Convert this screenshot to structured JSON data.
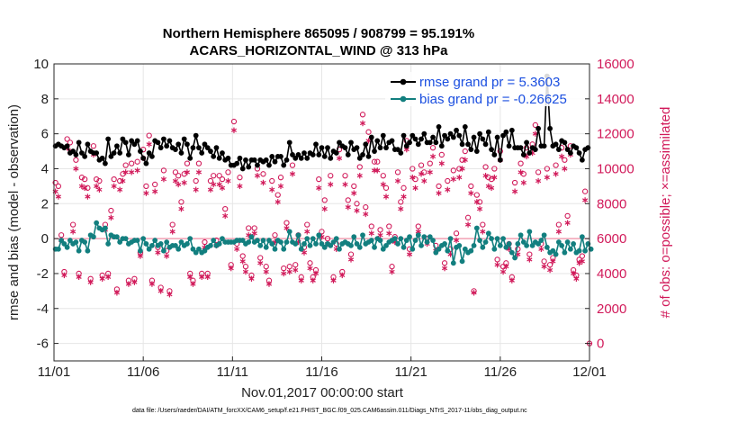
{
  "chart_data": {
    "type": "line",
    "title_line1": "Northern Hemisphere 865095 / 908799 = 95.191%",
    "title_line2": "ACARS_HORIZONTAL_WIND @ 313 hPa",
    "xlabel": "Nov.01,2017 00:00:00 start",
    "ylabel_left": "rmse and bias (model - observation)",
    "ylabel_right": "# of obs: o=possible; ×=assimilated",
    "footnote": "data file: /Users/raeder/DAI/ATM_forcXX/CAM6_setup/f.e21.FHIST_BGC.f09_025.CAM6assim.011/Diags_NTrS_2017-11/obs_diag_output.nc",
    "x_ticks": [
      "11/01",
      "11/06",
      "11/11",
      "11/16",
      "11/21",
      "11/26",
      "12/01"
    ],
    "x_range_days": [
      0,
      30
    ],
    "ylim_left": [
      -7,
      10
    ],
    "y_ticks_left": [
      "-6",
      "-4",
      "-2",
      "0",
      "2",
      "4",
      "6",
      "8",
      "10"
    ],
    "ylim_right": [
      -1000,
      16000
    ],
    "y_ticks_right": [
      "0",
      "2000",
      "4000",
      "6000",
      "8000",
      "10000",
      "12000",
      "14000",
      "16000"
    ],
    "legend": [
      {
        "label": "rmse grand pr = 5.3603",
        "color": "#000000"
      },
      {
        "label": "bias grand pr = -0.26625",
        "color": "#127f7f"
      }
    ],
    "colors": {
      "rmse": "#000000",
      "bias": "#127f7f",
      "obs": "#d11a5a",
      "zero_line": "#f2a0b4",
      "grid": "#e6e6e6"
    },
    "series": [
      {
        "name": "rmse",
        "values": [
          5.3,
          5.4,
          5.3,
          5.2,
          5.3,
          4.9,
          5.0,
          4.8,
          5.5,
          4.9,
          4.7,
          5.4,
          5.0,
          4.9,
          4.9,
          4.5,
          4.6,
          4.3,
          5.7,
          4.7,
          4.9,
          5.3,
          4.9,
          5.7,
          5.5,
          4.8,
          5.6,
          5.4,
          5.6,
          5.0,
          4.6,
          4.3,
          4.9,
          4.7,
          5.6,
          5.5,
          5.2,
          5.7,
          5.3,
          5.6,
          5.2,
          5.1,
          5.4,
          4.9,
          5.7,
          5.4,
          4.6,
          5.2,
          5.9,
          5.2,
          4.9,
          5.4,
          5.2,
          5.0,
          4.7,
          5.2,
          4.6,
          4.9,
          4.5,
          4.6,
          4.2,
          4.2,
          4.3,
          4.6,
          4.0,
          4.5,
          4.1,
          4.5,
          4.5,
          4.2,
          4.5,
          4.4,
          4.5,
          4.2,
          4.7,
          4.4,
          4.7,
          4.7,
          4.2,
          4.5,
          5.5,
          4.8,
          4.6,
          4.8,
          4.6,
          4.9,
          4.6,
          4.9,
          4.8,
          5.4,
          4.8,
          5.2,
          4.7,
          5.2,
          4.6,
          5.0,
          4.9,
          5.5,
          5.3,
          5.2,
          4.8,
          5.5,
          5.1,
          5.2,
          4.6,
          4.8,
          5.4,
          4.7,
          5.8,
          5.0,
          5.6,
          5.2,
          5.9,
          5.2,
          5.5,
          5.6,
          5.1,
          5.1,
          4.9,
          5.9,
          5.3,
          5.5,
          5.9,
          5.7,
          5.4,
          5.7,
          6.0,
          5.5,
          5.5,
          5.8,
          5.5,
          6.4,
          5.3,
          5.9,
          5.7,
          6.0,
          5.8,
          6.2,
          5.9,
          5.4,
          6.4,
          5.4,
          5.1,
          5.8,
          5.0,
          6.0,
          5.7,
          5.4,
          6.1,
          5.1,
          4.8,
          5.8,
          4.5,
          5.9,
          6.1,
          5.3,
          6.2,
          5.2,
          5.2,
          5.2,
          4.8,
          5.5,
          4.9,
          5.2,
          5.1,
          6.3,
          5.3,
          5.3,
          9.3,
          6.3,
          5.3,
          5.4,
          5.1,
          5.6,
          5.5,
          5.1,
          4.9,
          5.3,
          5.2,
          4.9,
          4.5,
          5.1,
          5.2
        ],
        "marker": "filled-circle"
      },
      {
        "name": "bias",
        "values": [
          -0.6,
          -0.6,
          -0.1,
          -0.3,
          -0.5,
          -0.1,
          -0.3,
          -0.2,
          -0.7,
          -0.1,
          -0.2,
          -0.7,
          0.2,
          0.1,
          0.9,
          0.6,
          0.5,
          0.6,
          -0.3,
          0.2,
          0.1,
          0.1,
          -0.2,
          0.0,
          0.0,
          -0.3,
          -0.2,
          -0.1,
          -0.1,
          -0.7,
          0.0,
          -0.3,
          -0.6,
          -0.4,
          -0.1,
          -0.4,
          -0.3,
          -0.7,
          -0.2,
          -0.5,
          -0.4,
          -0.4,
          -0.6,
          -0.2,
          -0.4,
          -0.3,
          0.0,
          -0.6,
          -0.8,
          -0.6,
          -0.8,
          -0.7,
          -0.5,
          -0.4,
          -0.1,
          -0.4,
          -0.3,
          0.0,
          -0.2,
          -0.2,
          -0.2,
          -0.2,
          -0.1,
          -0.1,
          -0.1,
          -0.3,
          -0.2,
          0.1,
          -0.2,
          -0.1,
          -0.4,
          -0.1,
          -0.5,
          -0.1,
          -0.3,
          -0.6,
          -0.1,
          -0.2,
          -0.6,
          -0.2,
          0.4,
          -0.2,
          -0.3,
          0.2,
          -0.6,
          -0.3,
          0.0,
          -0.4,
          0.0,
          -0.3,
          0.2,
          -0.3,
          -0.5,
          -0.3,
          -0.4,
          -0.2,
          0.0,
          -0.6,
          -0.3,
          -0.2,
          -0.3,
          -0.4,
          0.1,
          -0.3,
          -0.5,
          0.2,
          -0.3,
          -0.2,
          -0.1,
          -0.5,
          0.0,
          -0.1,
          -0.6,
          -0.4,
          -0.2,
          -0.1,
          0.0,
          -0.3,
          0.0,
          -0.5,
          -0.1,
          0.1,
          -0.6,
          -0.1,
          0.2,
          -0.4,
          0.1,
          -0.2,
          0.1,
          -0.1,
          -0.8,
          -0.6,
          -0.4,
          -0.3,
          -0.7,
          0.0,
          -1.4,
          -0.5,
          -0.4,
          -1.3,
          -0.6,
          -0.8,
          -0.7,
          -0.4,
          0.6,
          -0.1,
          -0.5,
          -0.2,
          0.3,
          0.0,
          -0.6,
          0.0,
          -0.4,
          0.0,
          -0.5,
          -0.3,
          -0.8,
          -1.1,
          -0.3,
          0.2,
          -0.2,
          -0.4,
          0.4,
          -0.4,
          -0.2,
          -0.3,
          -0.1,
          0.2,
          -0.5,
          -0.8,
          -0.7,
          -0.9,
          -0.2,
          -0.4,
          -0.8,
          -0.2,
          -0.6,
          -0.3,
          -0.8,
          -0.7,
          0.1,
          -0.7,
          -0.3,
          -0.6
        ],
        "marker": "filled-circle"
      },
      {
        "name": "obs possible",
        "values": [
          9200,
          9000,
          6200,
          4100,
          11700,
          11500,
          6800,
          10500,
          4000,
          9500,
          9400,
          8900,
          3700,
          11300,
          9400,
          9300,
          3900,
          6800,
          4000,
          7600,
          9400,
          3100,
          9300,
          9700,
          10200,
          3600,
          10300,
          3700,
          10400,
          5200,
          11100,
          9000,
          11900,
          3600,
          9100,
          5500,
          3200,
          9900,
          5300,
          3000,
          6800,
          9800,
          9600,
          8100,
          9700,
          10300,
          4000,
          3600,
          9300,
          10300,
          4000,
          5800,
          4000,
          9300,
          9600,
          5900,
          9600,
          9400,
          7700,
          9800,
          4500,
          12700,
          5700,
          9500,
          5000,
          4400,
          6600,
          3900,
          6600,
          10000,
          4900,
          9700,
          4400,
          3600,
          9300,
          6200,
          8500,
          9500,
          4300,
          6900,
          4400,
          10200,
          4500,
          6200,
          3800,
          5500,
          6800,
          4600,
          3800,
          4200,
          9400,
          6400,
          8200,
          6000,
          9600,
          3800,
          5700,
          11100,
          4100,
          9600,
          8200,
          5100,
          9000,
          8000,
          10100,
          13100,
          7800,
          12100,
          6700,
          10400,
          10400,
          6500,
          9600,
          8900,
          6700,
          4400,
          6100,
          9800,
          8100,
          8900,
          11600,
          5400,
          10000,
          9400,
          6700,
          10200,
          9800,
          6000,
          10300,
          11200,
          5600,
          9000,
          10800,
          4600,
          9300,
          5400,
          9900,
          6300,
          10000,
          10500,
          11000,
          7200,
          9000,
          3000,
          8500,
          8100,
          6800,
          10100,
          9500,
          9400,
          10000,
          4800,
          11000,
          4400,
          4600,
          5700,
          3800,
          9200,
          5400,
          10300,
          9700,
          11200,
          5100,
          11400,
          12500,
          9800,
          5700,
          4700,
          10000,
          4500,
          4900,
          10200,
          6800,
          11200,
          10500,
          7300,
          11300,
          4200,
          3900,
          4800,
          5000,
          8700
        ],
        "marker": "open-circle"
      },
      {
        "name": "obs assimilated",
        "values": [
          8700,
          8400,
          5900,
          3900,
          11200,
          11000,
          6400,
          10000,
          3800,
          9000,
          8900,
          8400,
          3500,
          10800,
          9000,
          8800,
          3700,
          6500,
          3800,
          7200,
          9000,
          2900,
          8800,
          9300,
          9800,
          3400,
          9800,
          3500,
          9900,
          5000,
          10600,
          8600,
          11400,
          3400,
          8700,
          5200,
          3000,
          9400,
          5000,
          2800,
          6400,
          9300,
          9100,
          7700,
          9200,
          9800,
          3800,
          3400,
          8800,
          9800,
          3800,
          5500,
          3800,
          8800,
          9100,
          5600,
          9100,
          8900,
          7300,
          9300,
          4300,
          12200,
          5400,
          9000,
          4700,
          4100,
          6200,
          3700,
          6300,
          9600,
          4600,
          9200,
          4100,
          3400,
          8800,
          5800,
          8100,
          9000,
          4000,
          6600,
          4100,
          9700,
          4200,
          5800,
          3600,
          5200,
          6400,
          4300,
          3600,
          4000,
          8900,
          6100,
          7700,
          5700,
          9100,
          3600,
          5400,
          10600,
          3900,
          9100,
          7800,
          4800,
          8600,
          7600,
          9600,
          12600,
          7400,
          11600,
          6300,
          9900,
          9900,
          6200,
          9100,
          8400,
          6300,
          4100,
          5800,
          9300,
          7700,
          8400,
          11100,
          5100,
          9500,
          8900,
          6400,
          9700,
          9300,
          5700,
          9800,
          10700,
          5300,
          8600,
          10300,
          4300,
          8800,
          5100,
          9400,
          5900,
          9500,
          10000,
          10500,
          6800,
          8600,
          2900,
          8100,
          7700,
          6400,
          9600,
          9000,
          8900,
          9500,
          4500,
          10500,
          4100,
          4400,
          5400,
          3600,
          8700,
          5100,
          9800,
          9200,
          10700,
          4800,
          10900,
          12000,
          9300,
          5400,
          4400,
          9500,
          4200,
          4700,
          9700,
          6400,
          10700,
          10000,
          6900,
          10800,
          4000,
          3700,
          4600,
          4700,
          8200
        ],
        "marker": "asterisk"
      }
    ],
    "last_point_obs": 0
  }
}
